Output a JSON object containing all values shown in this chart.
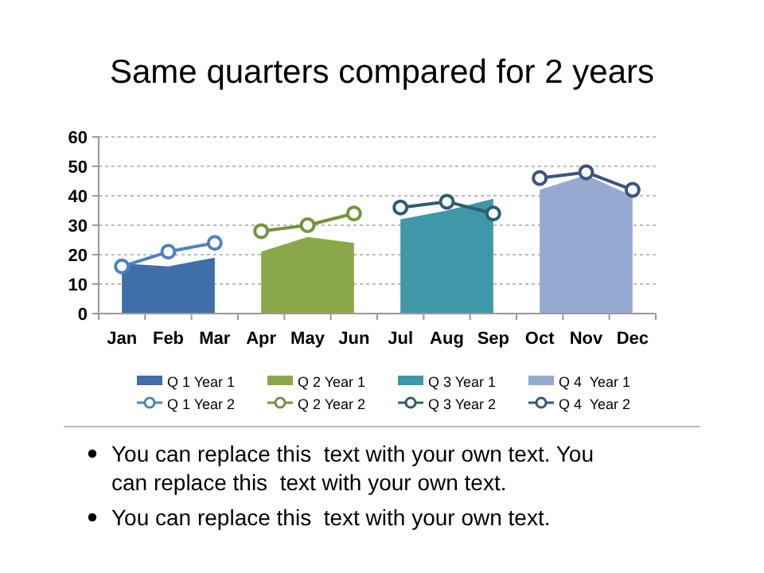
{
  "chart_data": {
    "type": "area",
    "title": "Same quarters compared for 2 years",
    "categories": [
      "Jan",
      "Feb",
      "Mar",
      "Apr",
      "May",
      "Jun",
      "Jul",
      "Aug",
      "Sep",
      "Oct",
      "Nov",
      "Dec"
    ],
    "ylim": [
      0,
      60
    ],
    "yticks": [
      0,
      10,
      20,
      30,
      40,
      50,
      60
    ],
    "grid": "y",
    "legend": "bottom",
    "series": [
      {
        "name": "Q 1 Year 1",
        "color": "#3f6ea8",
        "values": [
          17,
          16,
          19,
          null,
          null,
          null,
          null,
          null,
          null,
          null,
          null,
          null
        ]
      },
      {
        "name": "Q 2 Year 1",
        "color": "#8aa84a",
        "values": [
          null,
          null,
          null,
          21,
          26,
          24,
          null,
          null,
          null,
          null,
          null,
          null
        ]
      },
      {
        "name": "Q 3 Year 1",
        "color": "#3f97a8",
        "values": [
          null,
          null,
          null,
          null,
          null,
          null,
          32,
          35,
          39,
          null,
          null,
          null
        ]
      },
      {
        "name": "Q 4  Year 1",
        "color": "#95a9d1",
        "values": [
          null,
          null,
          null,
          null,
          null,
          null,
          null,
          null,
          null,
          42,
          47,
          40
        ]
      },
      {
        "name": "Q 1 Year 2",
        "type": "line",
        "color": "#4f81bd",
        "marker": "circle",
        "values": [
          16,
          21,
          24,
          null,
          null,
          null,
          null,
          null,
          null,
          null,
          null,
          null
        ]
      },
      {
        "name": "Q 2 Year 2",
        "type": "line",
        "color": "#77933c",
        "marker": "circle",
        "values": [
          null,
          null,
          null,
          28,
          30,
          34,
          null,
          null,
          null,
          null,
          null,
          null
        ]
      },
      {
        "name": "Q 3 Year 2",
        "type": "line",
        "color": "#2b5f6e",
        "marker": "circle",
        "values": [
          null,
          null,
          null,
          null,
          null,
          null,
          36,
          38,
          34,
          null,
          null,
          null
        ]
      },
      {
        "name": "Q 4  Year 2",
        "type": "line",
        "color": "#3b5580",
        "marker": "circle",
        "values": [
          null,
          null,
          null,
          null,
          null,
          null,
          null,
          null,
          null,
          46,
          48,
          42
        ]
      }
    ],
    "annotations": [
      "You can replace this  text with your own text. You can replace this  text with your own text.",
      "You can replace this  text with your own text."
    ]
  }
}
